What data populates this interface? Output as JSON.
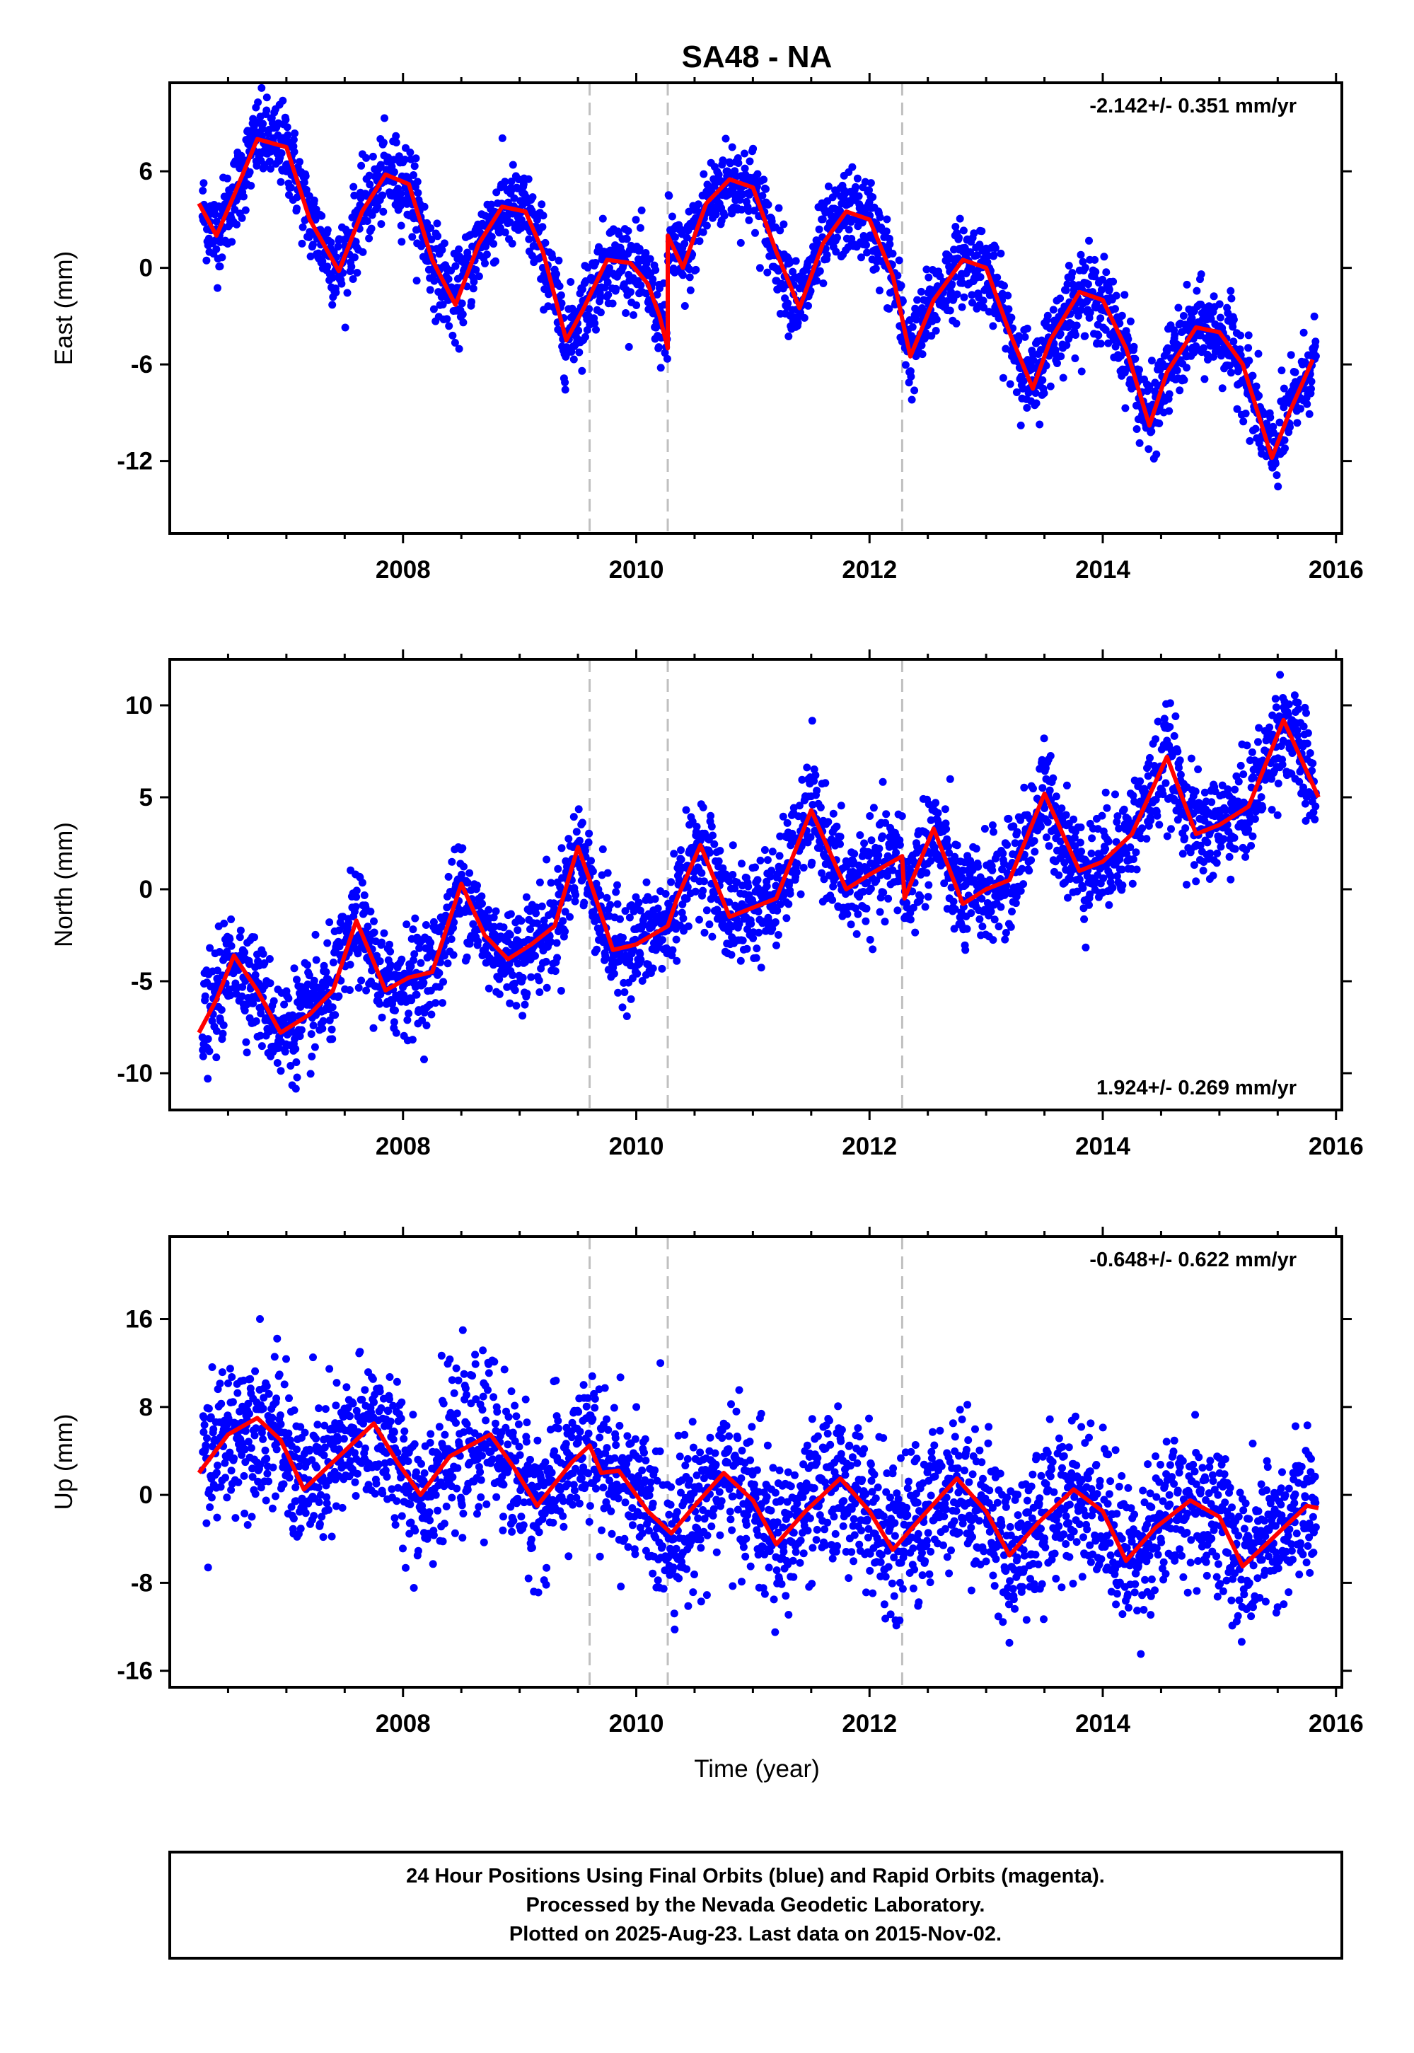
{
  "title": "SA48 - NA",
  "xlabel": "Time (year)",
  "footer": {
    "line1": "24 Hour Positions Using Final Orbits (blue) and Rapid Orbits (magenta).",
    "line2": "Processed by the Nevada Geodetic Laboratory.",
    "line3": "Plotted on 2025-Aug-23. Last data on 2015-Nov-02."
  },
  "colors": {
    "points": "#0000ff",
    "model": "#ff0000",
    "steps": "#c0c0c0",
    "axes": "#000000"
  },
  "chart_data": [
    {
      "type": "scatter",
      "panel": "east",
      "ylabel": "East (mm)",
      "rate_text": "-2.142+/- 0.351 mm/yr",
      "rate_position": "top-right",
      "xlim": [
        2006.0,
        2016.05
      ],
      "ylim": [
        -16.5,
        11.5
      ],
      "x_ticks": [
        2008,
        2010,
        2012,
        2014,
        2016
      ],
      "x_tick_labels": [
        "2008",
        "2010",
        "2012",
        "2014",
        "2016"
      ],
      "y_ticks": [
        6,
        0,
        -6,
        -12
      ],
      "y_tick_labels": [
        "6",
        "0",
        "-6",
        "-12"
      ],
      "step_epochs": [
        2009.6,
        2010.27,
        2012.28
      ],
      "model_line": {
        "x": [
          2006.25,
          2006.4,
          2006.55,
          2006.75,
          2007.0,
          2007.2,
          2007.45,
          2007.65,
          2007.85,
          2008.05,
          2008.25,
          2008.45,
          2008.65,
          2008.85,
          2009.05,
          2009.2,
          2009.4,
          2009.55,
          2009.75,
          2009.95,
          2010.1,
          2010.2,
          2010.27,
          2010.27,
          2010.4,
          2010.6,
          2010.8,
          2011.0,
          2011.2,
          2011.4,
          2011.6,
          2011.8,
          2012.0,
          2012.2,
          2012.35,
          2012.55,
          2012.8,
          2013.0,
          2013.2,
          2013.4,
          2013.55,
          2013.8,
          2014.0,
          2014.2,
          2014.4,
          2014.55,
          2014.8,
          2015.0,
          2015.2,
          2015.45,
          2015.6,
          2015.8
        ],
        "y": [
          4.0,
          2.0,
          4.5,
          8.0,
          7.5,
          3.0,
          -0.2,
          3.5,
          5.8,
          5.2,
          0.5,
          -2.3,
          1.5,
          3.8,
          3.5,
          1.0,
          -4.5,
          -2.5,
          0.5,
          0.3,
          -1.0,
          -3.0,
          -5.0,
          2.0,
          0.0,
          4.0,
          5.5,
          5.0,
          1.0,
          -2.5,
          1.5,
          3.5,
          3.0,
          -0.5,
          -5.5,
          -2.0,
          0.5,
          0.0,
          -4.0,
          -7.5,
          -4.5,
          -1.5,
          -2.0,
          -5.0,
          -9.8,
          -6.5,
          -3.7,
          -4.0,
          -6.0,
          -11.8,
          -9.0,
          -5.7
        ]
      }
    },
    {
      "type": "scatter",
      "panel": "north",
      "ylabel": "North (mm)",
      "rate_text": "1.924+/- 0.269 mm/yr",
      "rate_position": "bottom-right",
      "xlim": [
        2006.0,
        2016.05
      ],
      "ylim": [
        -12.0,
        12.5
      ],
      "x_ticks": [
        2008,
        2010,
        2012,
        2014,
        2016
      ],
      "x_tick_labels": [
        "2008",
        "2010",
        "2012",
        "2014",
        "2016"
      ],
      "y_ticks": [
        10,
        5,
        0,
        -5,
        -10
      ],
      "y_tick_labels": [
        "10",
        "5",
        "0",
        "-5",
        "-10"
      ],
      "step_epochs": [
        2009.6,
        2010.27,
        2012.28
      ],
      "model_line": {
        "x": [
          2006.25,
          2006.4,
          2006.55,
          2006.75,
          2006.95,
          2007.2,
          2007.4,
          2007.6,
          2007.85,
          2008.05,
          2008.25,
          2008.5,
          2008.7,
          2008.9,
          2009.1,
          2009.3,
          2009.5,
          2009.6,
          2009.8,
          2010.0,
          2010.27,
          2010.35,
          2010.55,
          2010.8,
          2011.0,
          2011.2,
          2011.5,
          2011.8,
          2012.0,
          2012.28,
          2012.3,
          2012.55,
          2012.8,
          2013.0,
          2013.2,
          2013.5,
          2013.8,
          2014.0,
          2014.25,
          2014.55,
          2014.8,
          2015.0,
          2015.25,
          2015.55,
          2015.85
        ],
        "y": [
          -7.8,
          -6.0,
          -3.6,
          -5.5,
          -7.8,
          -6.8,
          -5.5,
          -1.7,
          -5.5,
          -4.8,
          -4.5,
          0.3,
          -2.5,
          -3.8,
          -3.0,
          -2.0,
          2.3,
          0.5,
          -3.3,
          -3.0,
          -2.0,
          -0.5,
          2.4,
          -1.5,
          -1.0,
          -0.5,
          4.3,
          0.0,
          0.8,
          1.8,
          -0.5,
          3.3,
          -0.8,
          0.0,
          0.5,
          5.2,
          1.0,
          1.5,
          3.0,
          7.2,
          3.0,
          3.5,
          4.5,
          9.2,
          5.0
        ]
      }
    },
    {
      "type": "scatter",
      "panel": "up",
      "ylabel": "Up (mm)",
      "rate_text": "-0.648+/- 0.622 mm/yr",
      "rate_position": "top-right",
      "xlim": [
        2006.0,
        2016.05
      ],
      "ylim": [
        -17.5,
        23.5
      ],
      "x_ticks": [
        2008,
        2010,
        2012,
        2014,
        2016
      ],
      "x_tick_labels": [
        "2008",
        "2010",
        "2012",
        "2014",
        "2016"
      ],
      "y_ticks": [
        16,
        8,
        0,
        -8,
        -16
      ],
      "y_tick_labels": [
        "16",
        "8",
        "0",
        "-8",
        "-16"
      ],
      "step_epochs": [
        2009.6,
        2010.27,
        2012.28
      ],
      "model_line": {
        "x": [
          2006.25,
          2006.5,
          2006.75,
          2006.95,
          2007.15,
          2007.4,
          2007.75,
          2007.95,
          2008.15,
          2008.4,
          2008.75,
          2008.95,
          2009.15,
          2009.45,
          2009.6,
          2009.7,
          2009.85,
          2010.1,
          2010.3,
          2010.5,
          2010.75,
          2011.0,
          2011.2,
          2011.45,
          2011.75,
          2012.0,
          2012.2,
          2012.45,
          2012.75,
          2013.0,
          2013.2,
          2013.45,
          2013.75,
          2014.0,
          2014.2,
          2014.45,
          2014.75,
          2015.0,
          2015.2,
          2015.45,
          2015.75,
          2015.85
        ],
        "y": [
          2.0,
          5.5,
          7.0,
          5.0,
          0.5,
          3.0,
          6.5,
          3.0,
          0.0,
          3.5,
          5.5,
          2.5,
          -1.0,
          3.0,
          4.5,
          2.0,
          2.2,
          -1.5,
          -3.5,
          -1.0,
          2.0,
          -0.5,
          -4.5,
          -1.5,
          1.5,
          -1.5,
          -5.0,
          -2.0,
          1.5,
          -1.5,
          -5.5,
          -2.5,
          0.5,
          -1.5,
          -6.0,
          -3.0,
          -0.5,
          -2.0,
          -6.5,
          -4.0,
          -1.0,
          -1.2
        ]
      }
    }
  ]
}
